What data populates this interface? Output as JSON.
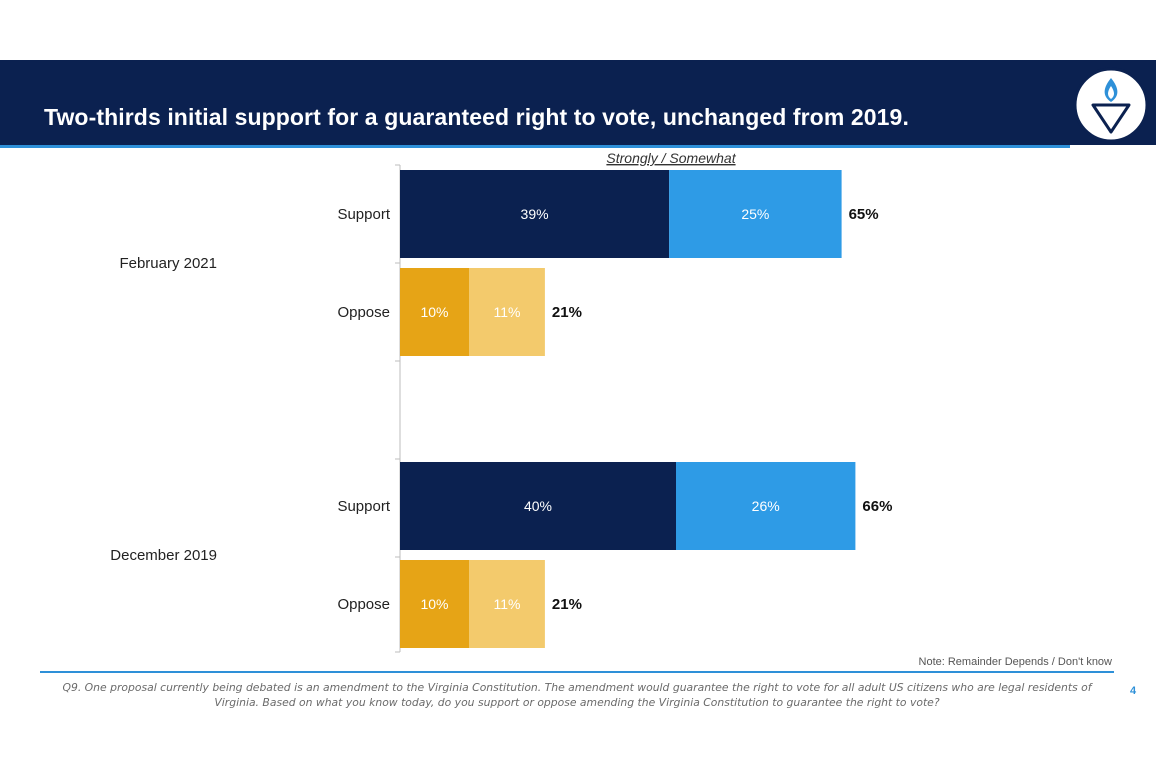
{
  "slide": {
    "title": "Two-thirds initial support for a guaranteed right to vote, unchanged from 2019.",
    "note": "Note: Remainder Depends / Don't know",
    "footnote": "Q9. One proposal currently being debated is an amendment to the Virginia Constitution. The amendment would guarantee the right to vote for all adult US citizens who are legal residents of Virginia. Based on what you know today, do you support or oppose amending the Virginia Constitution to guarantee the right to vote?",
    "page_number": "4",
    "logo": "torch-shield-logo"
  },
  "colors": {
    "banner": "#0b2150",
    "accent": "#2e90d8",
    "support_strong": "#0b2150",
    "support_somewhat": "#2e9be6",
    "oppose_strong": "#e6a416",
    "oppose_somewhat": "#f3ca6c"
  },
  "chart_data": {
    "type": "bar",
    "orientation": "horizontal",
    "stacked": true,
    "header": "Strongly / Somewhat",
    "groups": [
      {
        "label": "February 2021",
        "rows": [
          {
            "label": "Support",
            "kind": "support",
            "strongly": 39,
            "somewhat": 25,
            "total": "65%"
          },
          {
            "label": "Oppose",
            "kind": "oppose",
            "strongly": 10,
            "somewhat": 11,
            "total": "21%"
          }
        ]
      },
      {
        "label": "December 2019",
        "rows": [
          {
            "label": "Support",
            "kind": "support",
            "strongly": 40,
            "somewhat": 26,
            "total": "66%"
          },
          {
            "label": "Oppose",
            "kind": "oppose",
            "strongly": 10,
            "somewhat": 11,
            "total": "21%"
          }
        ]
      }
    ],
    "xlim": [
      0,
      100
    ],
    "unit": "%"
  }
}
